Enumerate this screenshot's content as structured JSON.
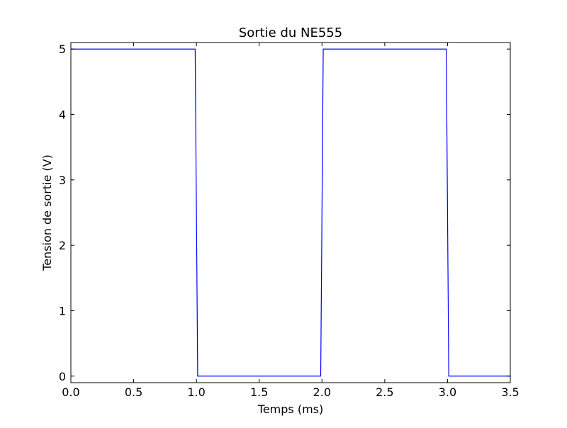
{
  "chart_data": {
    "type": "line",
    "title": "Sortie du NE555",
    "xlabel": "Temps (ms)",
    "ylabel": "Tension de sortie (V)",
    "xlim": [
      0.0,
      3.5
    ],
    "ylim": [
      -0.1,
      5.1
    ],
    "xticks": [
      0.0,
      0.5,
      1.0,
      1.5,
      2.0,
      2.5,
      3.0,
      3.5
    ],
    "xtick_labels": [
      "0.0",
      "0.5",
      "1.0",
      "1.5",
      "2.0",
      "2.5",
      "3.0",
      "3.5"
    ],
    "yticks": [
      0,
      1,
      2,
      3,
      4,
      5
    ],
    "ytick_labels": [
      "0",
      "1",
      "2",
      "3",
      "4",
      "5"
    ],
    "grid": false,
    "series": [
      {
        "color": "#0000ff",
        "x": [
          0.0,
          0.99,
          1.01,
          1.99,
          2.01,
          2.99,
          3.01,
          3.5
        ],
        "y": [
          5,
          5,
          0,
          0,
          5,
          5,
          0,
          0
        ]
      }
    ]
  }
}
